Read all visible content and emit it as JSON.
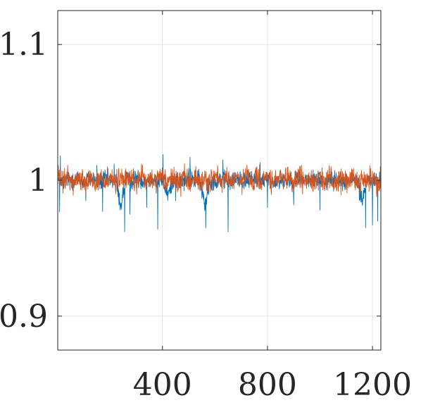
{
  "chart_data": {
    "type": "line",
    "title": "",
    "xlabel": "",
    "ylabel": "",
    "xlim": [
      1,
      1232
    ],
    "ylim": [
      0.875,
      1.125
    ],
    "x_ticks": [
      400,
      800,
      1200
    ],
    "x_tick_labels": [
      "400",
      "800",
      "1200"
    ],
    "y_ticks": [
      0.9,
      1,
      1.1
    ],
    "y_tick_labels": [
      "0.9",
      "1",
      "1.1"
    ],
    "grid": true,
    "legend": "none",
    "series": [
      {
        "color": "#0072BD",
        "n_points": 1232,
        "baseline": 1.0,
        "typical_spread": 0.004,
        "values_sampled_every_20": [
          1.001,
          0.997,
          1.003,
          0.999,
          1.002,
          0.996,
          1.004,
          1.0,
          0.998,
          1.003,
          0.999,
          1.001,
          0.962,
          1.002,
          0.997,
          1.004,
          1.0,
          0.999,
          1.003,
          0.998,
          1.001,
          0.978,
          1.002,
          1.0,
          0.997,
          1.005,
          0.999,
          1.002,
          0.964,
          1.001,
          0.998,
          1.003,
          1.0,
          0.996,
          1.002,
          1.001,
          0.999,
          1.004,
          0.998,
          1.0,
          1.003,
          0.997,
          1.001,
          0.999,
          1.002,
          0.998,
          1.004,
          1.0,
          0.999,
          1.002,
          1.001,
          0.997,
          1.003,
          0.999,
          1.0,
          1.002,
          0.998,
          1.001,
          0.97,
          1.003,
          0.999,
          1.0
        ],
        "spikes": [
          {
            "x": 8,
            "y": 0.977
          },
          {
            "x": 11,
            "y": 1.018
          },
          {
            "x": 108,
            "y": 0.985
          },
          {
            "x": 150,
            "y": 1.011
          },
          {
            "x": 172,
            "y": 0.977
          },
          {
            "x": 216,
            "y": 1.012
          },
          {
            "x": 256,
            "y": 0.962
          },
          {
            "x": 276,
            "y": 0.975
          },
          {
            "x": 340,
            "y": 0.98
          },
          {
            "x": 382,
            "y": 0.964
          },
          {
            "x": 402,
            "y": 1.019
          },
          {
            "x": 450,
            "y": 0.985
          },
          {
            "x": 505,
            "y": 1.017
          },
          {
            "x": 565,
            "y": 0.965
          },
          {
            "x": 630,
            "y": 1.015
          },
          {
            "x": 650,
            "y": 0.962
          },
          {
            "x": 772,
            "y": 1.013
          },
          {
            "x": 800,
            "y": 0.98
          },
          {
            "x": 900,
            "y": 0.982
          },
          {
            "x": 1000,
            "y": 0.978
          },
          {
            "x": 1150,
            "y": 0.985
          },
          {
            "x": 1174,
            "y": 0.965
          },
          {
            "x": 1200,
            "y": 0.967
          },
          {
            "x": 1220,
            "y": 0.97
          }
        ]
      },
      {
        "color": "#D95319",
        "n_points": 1232,
        "baseline": 1.0,
        "typical_spread": 0.005,
        "values_sampled_every_20": [
          1.004,
          0.996,
          1.006,
          0.995,
          1.005,
          0.998,
          1.007,
          0.994,
          1.003,
          0.997,
          1.006,
          0.995,
          1.004,
          0.999,
          1.005,
          0.996,
          1.008,
          0.995,
          1.003,
          0.998,
          1.006,
          0.994,
          1.005,
          0.997,
          1.004,
          0.996,
          1.007,
          0.995,
          1.003,
          0.998,
          1.006,
          0.994,
          1.005,
          0.997,
          1.004,
          0.996,
          1.008,
          0.995,
          1.003,
          0.998,
          1.006,
          0.994,
          1.005,
          0.997,
          1.004,
          0.996,
          1.007,
          0.995,
          1.003,
          0.998,
          1.006,
          0.994,
          1.005,
          0.997,
          1.004,
          0.996,
          1.008,
          0.995,
          1.003,
          0.998,
          1.006,
          0.995
        ],
        "spikes": [
          {
            "x": 3,
            "y": 1.011
          },
          {
            "x": 190,
            "y": 1.01
          },
          {
            "x": 320,
            "y": 1.012
          },
          {
            "x": 470,
            "y": 0.988
          },
          {
            "x": 610,
            "y": 1.011
          },
          {
            "x": 760,
            "y": 1.01
          },
          {
            "x": 930,
            "y": 1.011
          },
          {
            "x": 1080,
            "y": 0.989
          },
          {
            "x": 1230,
            "y": 1.01
          }
        ]
      }
    ]
  }
}
